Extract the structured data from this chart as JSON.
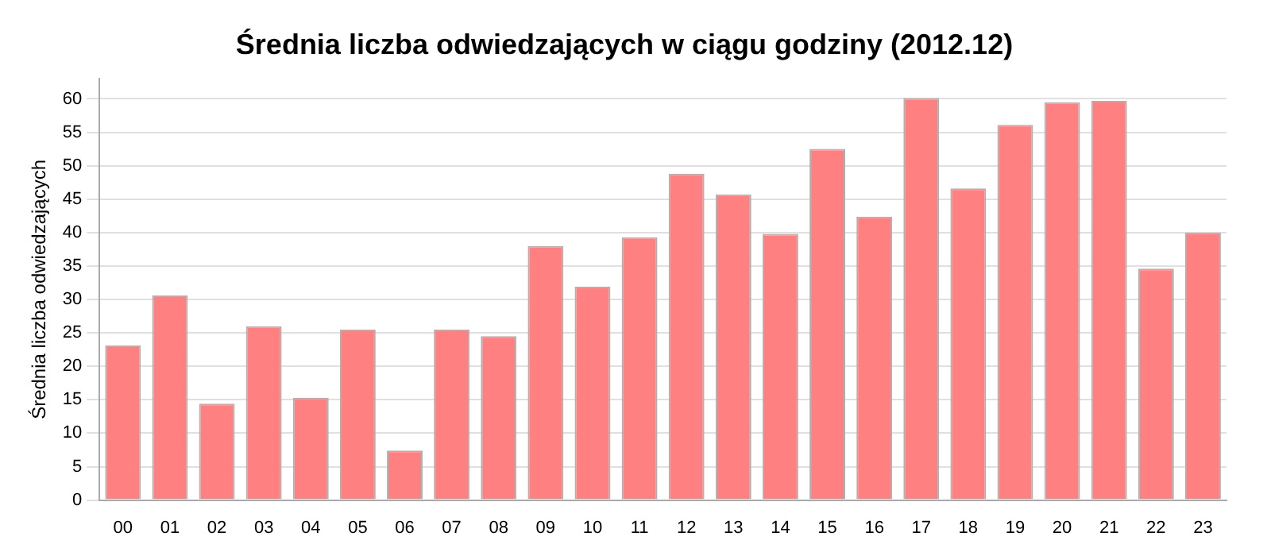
{
  "chart_data": {
    "type": "bar",
    "title": "Średnia liczba odwiedzających w ciągu godziny (2012.12)",
    "ylabel": "Średnia liczba odwiedzających",
    "categories": [
      "00",
      "01",
      "02",
      "03",
      "04",
      "05",
      "06",
      "07",
      "08",
      "09",
      "10",
      "11",
      "12",
      "13",
      "14",
      "15",
      "16",
      "17",
      "18",
      "19",
      "20",
      "21",
      "22",
      "23"
    ],
    "values": [
      23.1,
      30.6,
      14.4,
      26.0,
      15.3,
      25.5,
      7.4,
      25.5,
      24.5,
      38.0,
      31.9,
      39.3,
      48.8,
      45.7,
      39.8,
      52.5,
      42.4,
      60.1,
      46.6,
      56.1,
      59.5,
      59.7,
      34.6,
      40.0
    ],
    "color": "#ff8080",
    "ylim": [
      0,
      63
    ],
    "yticks": [
      0,
      5,
      10,
      15,
      20,
      25,
      30,
      35,
      40,
      45,
      50,
      55,
      60
    ],
    "grid": "y"
  }
}
